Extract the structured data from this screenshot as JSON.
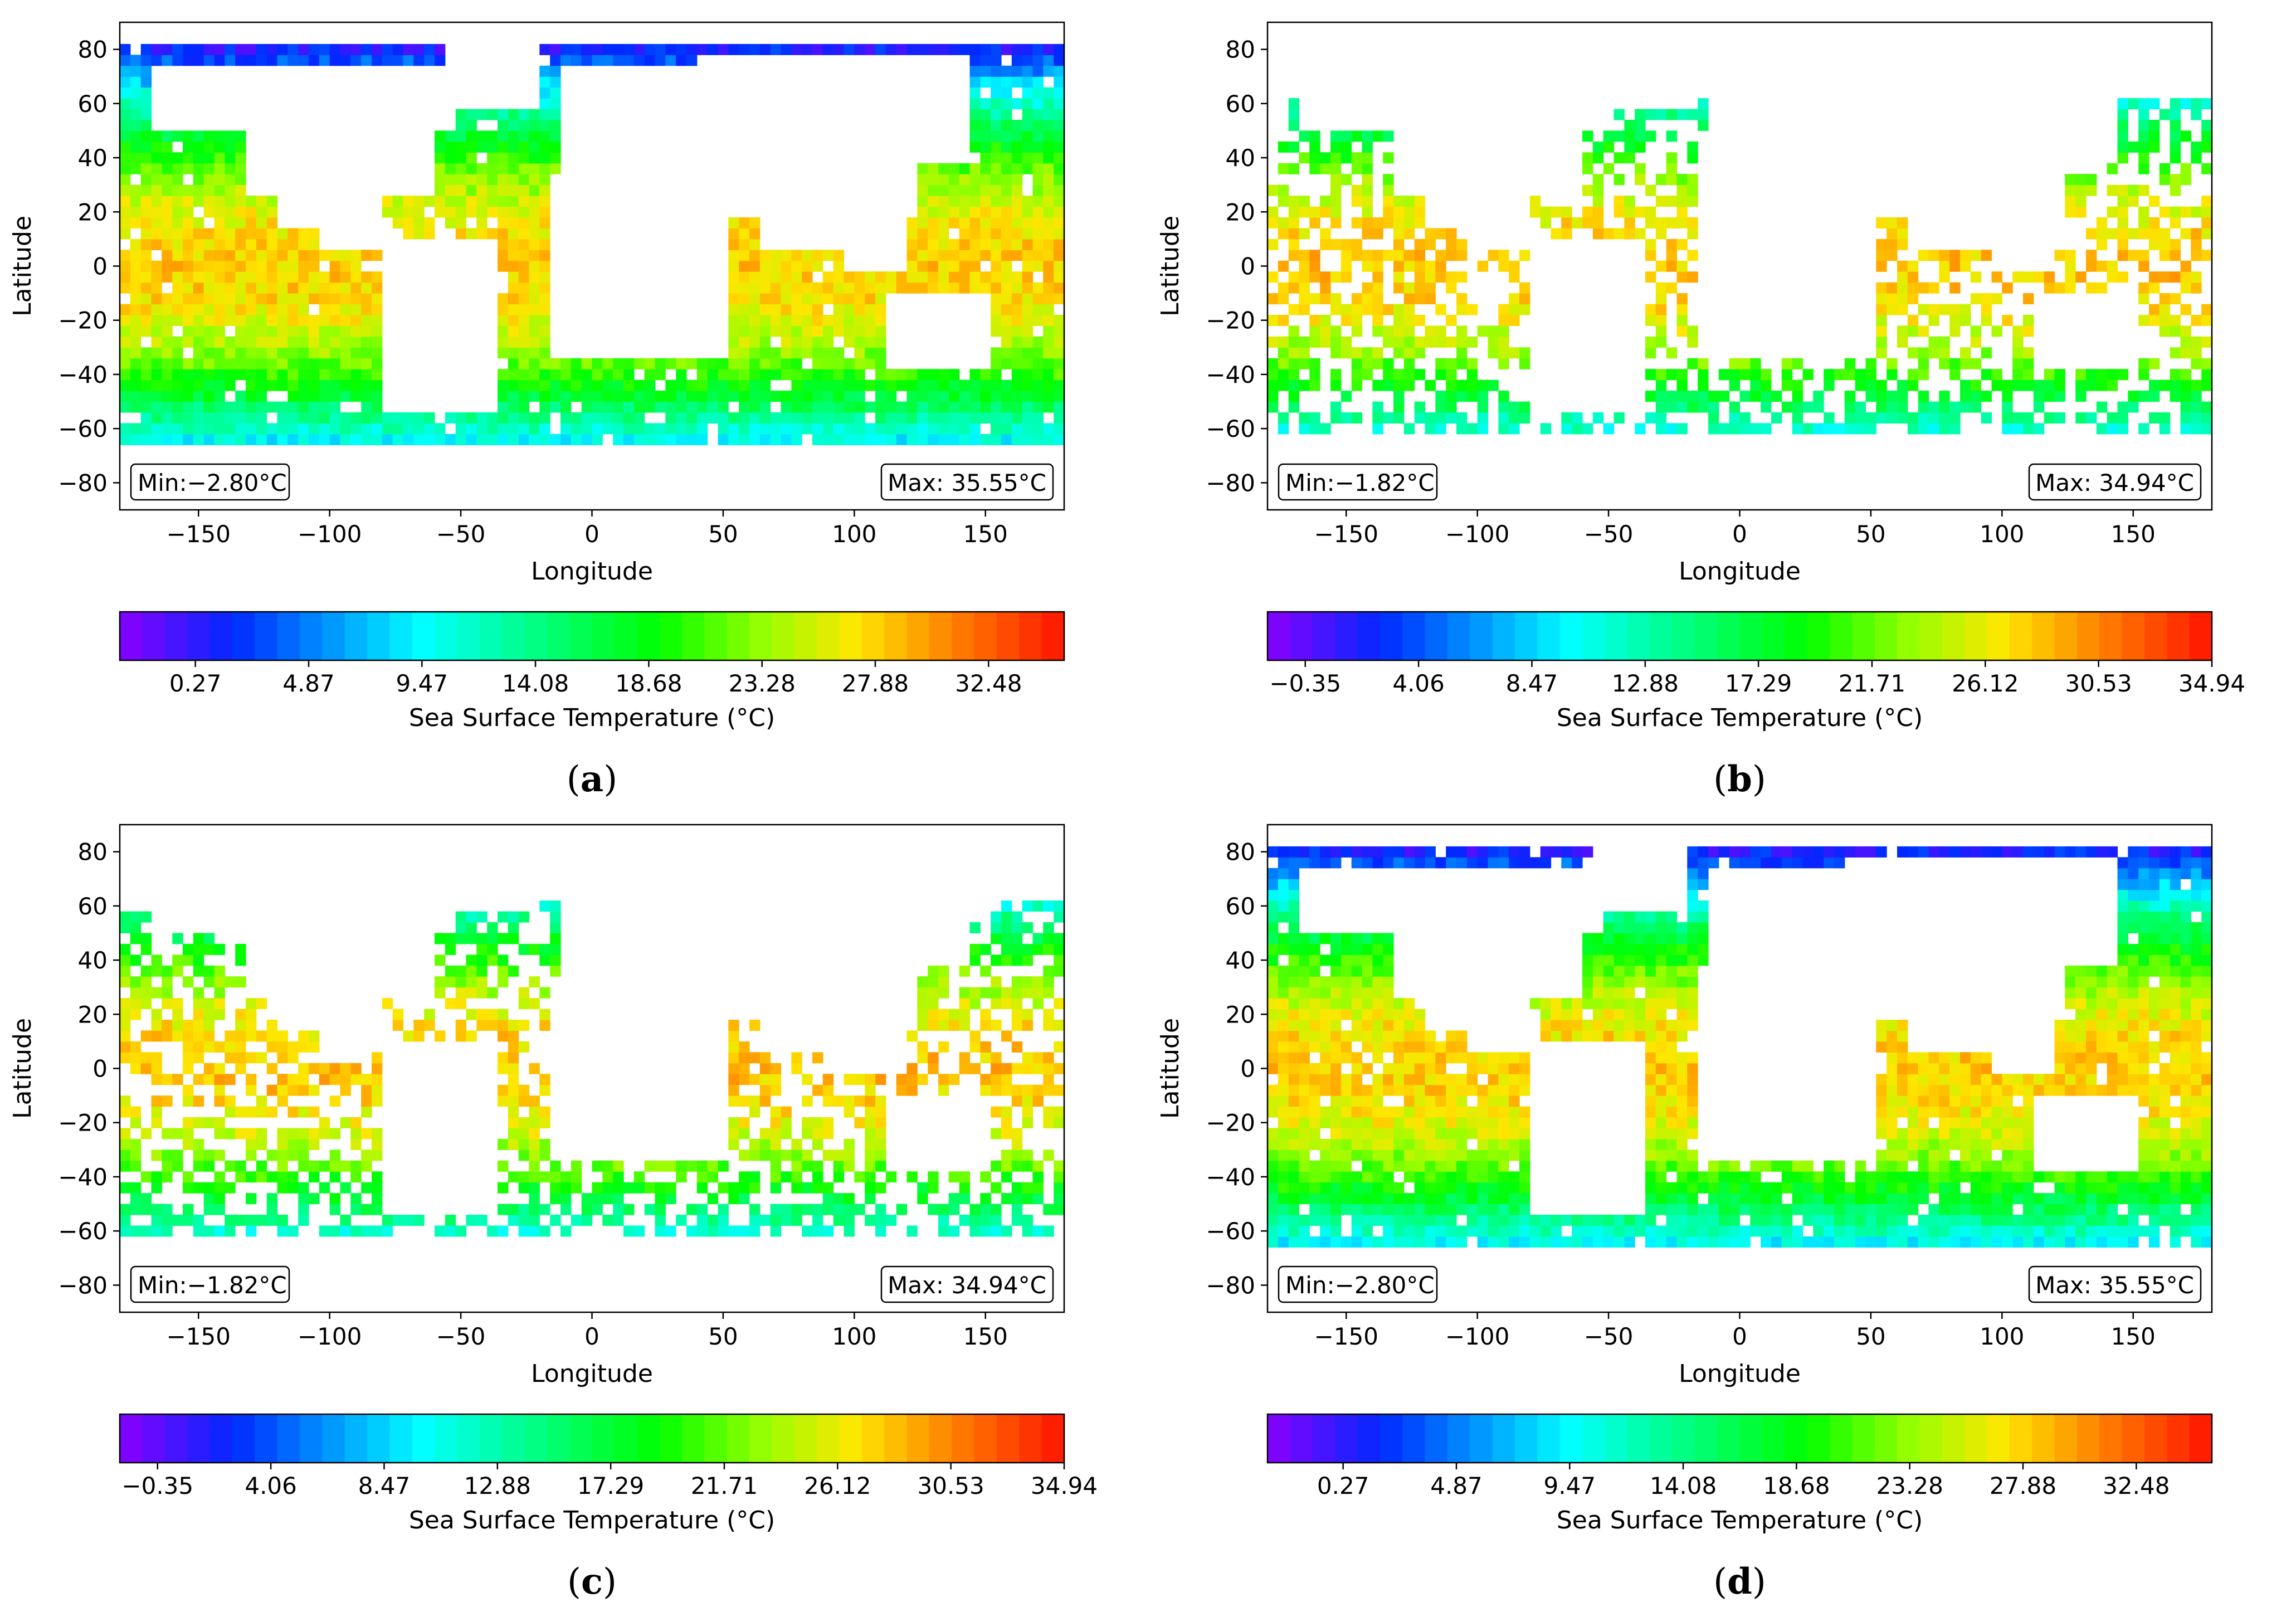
{
  "figure": {
    "panels": [
      {
        "id": "a",
        "letter": "a",
        "min_text": "Min:−2.80°C",
        "max_text": "Max: 35.55°C",
        "cb_ticks": [
          "0.27",
          "4.87",
          "9.47",
          "14.08",
          "18.68",
          "23.28",
          "27.88",
          "32.48"
        ],
        "coverage": "full"
      },
      {
        "id": "b",
        "letter": "b",
        "min_text": "Min:−1.82°C",
        "max_text": "Max: 34.94°C",
        "cb_ticks": [
          "−0.35",
          "4.06",
          "8.47",
          "12.88",
          "17.29",
          "21.71",
          "26.12",
          "30.53",
          "34.94"
        ],
        "coverage": "sparse"
      },
      {
        "id": "c",
        "letter": "c",
        "min_text": "Min:−1.82°C",
        "max_text": "Max: 34.94°C",
        "cb_ticks": [
          "−0.35",
          "4.06",
          "8.47",
          "12.88",
          "17.29",
          "21.71",
          "26.12",
          "30.53",
          "34.94"
        ],
        "coverage": "sparse"
      },
      {
        "id": "d",
        "letter": "d",
        "min_text": "Min:−2.80°C",
        "max_text": "Max: 35.55°C",
        "cb_ticks": [
          "0.27",
          "4.87",
          "9.47",
          "14.08",
          "18.68",
          "23.28",
          "27.88",
          "32.48"
        ],
        "coverage": "full"
      }
    ]
  },
  "chart_data": [
    {
      "type": "heatmap",
      "panel": "a",
      "xlabel": "Longitude",
      "ylabel": "Latitude",
      "xlim": [
        -180,
        180
      ],
      "ylim": [
        -90,
        90
      ],
      "xticks": [
        -150,
        -100,
        -50,
        0,
        50,
        100,
        150
      ],
      "yticks": [
        -80,
        -60,
        -40,
        -20,
        0,
        20,
        40,
        60,
        80
      ],
      "colorbar_label": "Sea Surface Temperature (°C)",
      "vmin": -2.8,
      "vmax": 35.55,
      "colorbar_ticks": [
        0.27,
        4.87,
        9.47,
        14.08,
        18.68,
        23.28,
        27.88,
        32.48
      ],
      "annotation_min": "Min:−2.80°C",
      "annotation_max": "Max: 35.55°C"
    },
    {
      "type": "heatmap",
      "panel": "b",
      "xlabel": "Longitude",
      "ylabel": "Latitude",
      "xlim": [
        -180,
        180
      ],
      "ylim": [
        -90,
        90
      ],
      "xticks": [
        -150,
        -100,
        -50,
        0,
        50,
        100,
        150
      ],
      "yticks": [
        -80,
        -60,
        -40,
        -20,
        0,
        20,
        40,
        60,
        80
      ],
      "colorbar_label": "Sea Surface Temperature (°C)",
      "vmin": -1.82,
      "vmax": 34.94,
      "colorbar_ticks": [
        -0.35,
        4.06,
        8.47,
        12.88,
        17.29,
        21.71,
        26.12,
        30.53,
        34.94
      ],
      "annotation_min": "Min:−1.82°C",
      "annotation_max": "Max: 34.94°C"
    },
    {
      "type": "heatmap",
      "panel": "c",
      "xlabel": "Longitude",
      "ylabel": "Latitude",
      "xlim": [
        -180,
        180
      ],
      "ylim": [
        -90,
        90
      ],
      "xticks": [
        -150,
        -100,
        -50,
        0,
        50,
        100,
        150
      ],
      "yticks": [
        -80,
        -60,
        -40,
        -20,
        0,
        20,
        40,
        60,
        80
      ],
      "colorbar_label": "Sea Surface Temperature (°C)",
      "vmin": -1.82,
      "vmax": 34.94,
      "colorbar_ticks": [
        -0.35,
        4.06,
        8.47,
        12.88,
        17.29,
        21.71,
        26.12,
        30.53,
        34.94
      ],
      "annotation_min": "Min:−1.82°C",
      "annotation_max": "Max: 34.94°C"
    },
    {
      "type": "heatmap",
      "panel": "d",
      "xlabel": "Longitude",
      "ylabel": "Latitude",
      "xlim": [
        -180,
        180
      ],
      "ylim": [
        -90,
        90
      ],
      "xticks": [
        -150,
        -100,
        -50,
        0,
        50,
        100,
        150
      ],
      "yticks": [
        -80,
        -60,
        -40,
        -20,
        0,
        20,
        40,
        60,
        80
      ],
      "colorbar_label": "Sea Surface Temperature (°C)",
      "vmin": -2.8,
      "vmax": 35.55,
      "colorbar_ticks": [
        0.27,
        4.87,
        9.47,
        14.08,
        18.68,
        23.28,
        27.88,
        32.48
      ],
      "annotation_min": "Min:−2.80°C",
      "annotation_max": "Max: 35.55°C"
    }
  ],
  "colors": {
    "land": "#ffffff",
    "frame": "#000000"
  }
}
